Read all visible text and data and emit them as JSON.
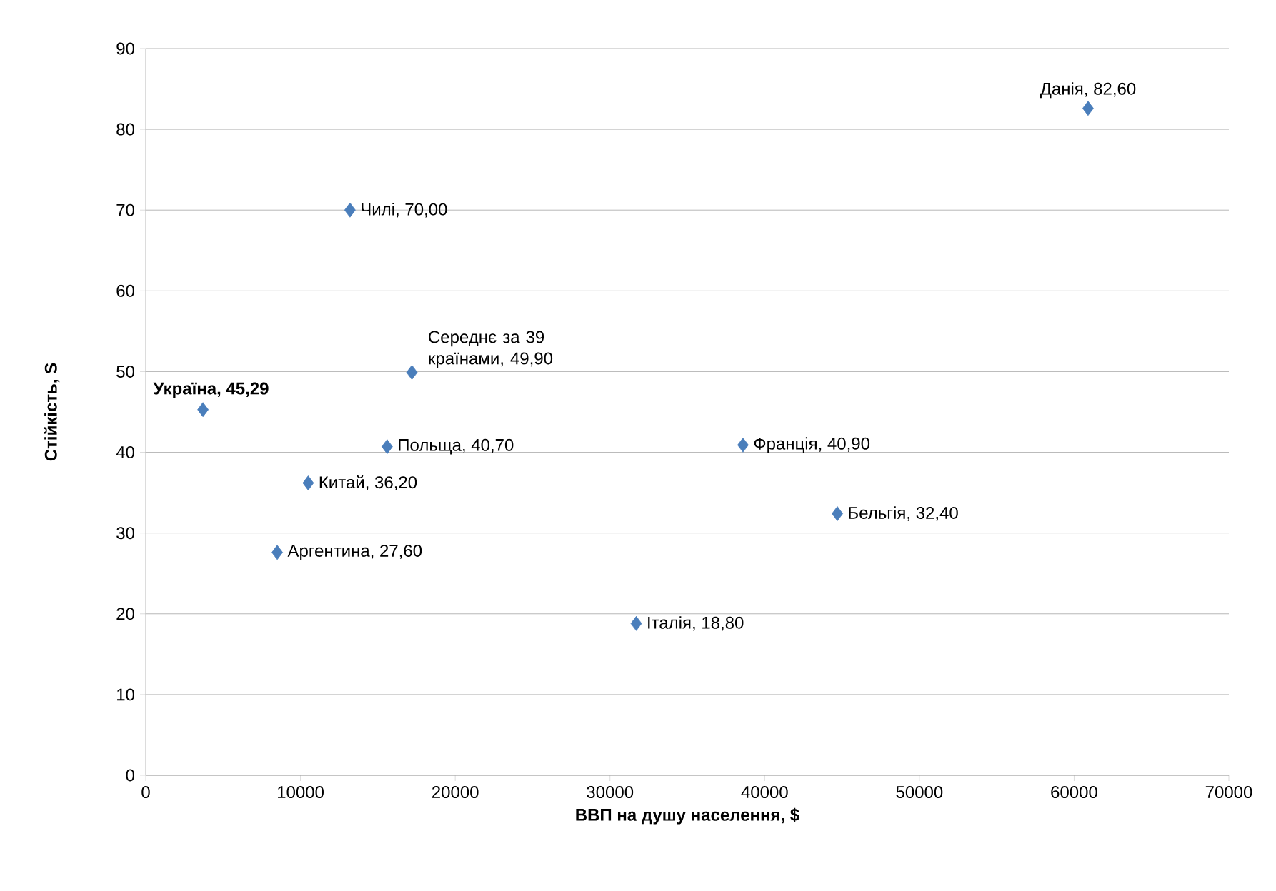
{
  "chart_data": {
    "type": "scatter",
    "xlabel": "ВВП на душу населення, $",
    "ylabel": "Стійкість, S",
    "x": [
      3700,
      13200,
      17200,
      15600,
      10500,
      8500,
      31700,
      38600,
      44700,
      60900
    ],
    "series": [
      {
        "color": "#4a7ebb",
        "values": [
          45.29,
          70.0,
          49.9,
          40.7,
          36.2,
          27.6,
          18.8,
          40.9,
          32.4,
          82.6
        ],
        "value_labels": [
          "**Україна, 45,29**",
          "Чилі, 70,00",
          "Середнє за 39 країнами, 49,90",
          "Польща, 40,70",
          "Китай, 36,20",
          "Аргентина, 27,60",
          "Італія, 18,80",
          "Франція, 40,90",
          "Бельгія, 32,40",
          "Данія, 82,60"
        ]
      }
    ],
    "xlim": [
      0,
      70000
    ],
    "ylim": [
      0,
      90
    ],
    "xticks": [
      0,
      10000,
      20000,
      30000,
      40000,
      50000,
      60000,
      70000
    ],
    "yticks": [
      0,
      10,
      20,
      30,
      40,
      50,
      60,
      70,
      80,
      90
    ],
    "grid": "y",
    "marker": "diamond"
  }
}
